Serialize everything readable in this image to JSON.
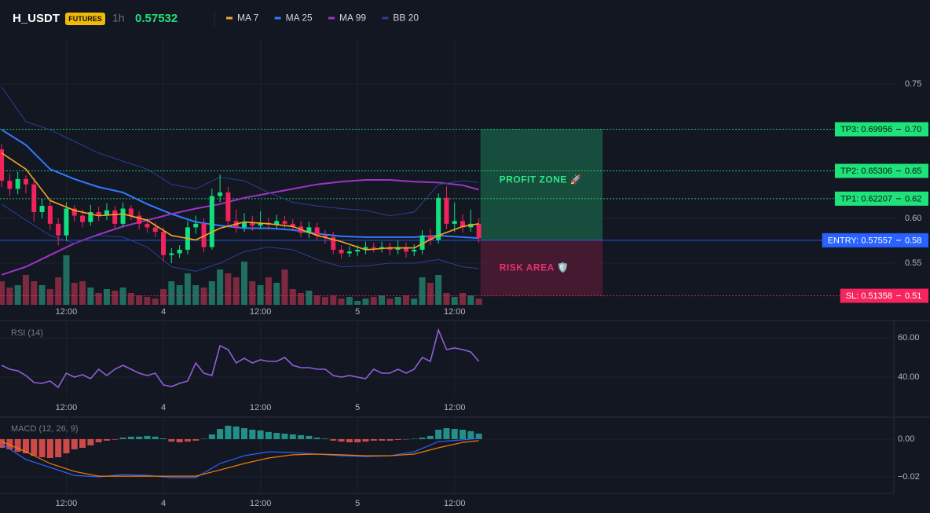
{
  "header": {
    "symbol": "H_USDT",
    "badge": "FUTURES",
    "interval": "1h",
    "price": 0.57532
  },
  "chart_data": [
    {
      "type": "candlestick",
      "xlim": [
        -0.2,
        110.5
      ],
      "xticks": [
        {
          "value": 8,
          "label": "12:00"
        },
        {
          "value": 20,
          "label": "4"
        },
        {
          "value": 32,
          "label": "12:00"
        },
        {
          "value": 44,
          "label": "5"
        },
        {
          "value": 56,
          "label": "12:00"
        }
      ],
      "ylim": [
        0.5035,
        0.8018
      ],
      "yticks": [
        0.75,
        {
          "value": 0.6,
          "label": "0.60"
        },
        0.55
      ],
      "up_color": "#12e07f",
      "down_color": "#f0245c",
      "x": [
        0,
        1,
        2,
        3,
        4,
        5,
        6,
        7,
        8,
        9,
        10,
        11,
        12,
        13,
        14,
        15,
        16,
        17,
        18,
        19,
        20,
        21,
        22,
        23,
        24,
        25,
        26,
        27,
        28,
        29,
        30,
        31,
        32,
        33,
        34,
        35,
        36,
        37,
        38,
        39,
        40,
        41,
        42,
        43,
        44,
        45,
        46,
        47,
        48,
        49,
        50,
        51,
        52,
        53,
        54,
        55,
        56,
        57,
        58,
        59
      ],
      "open": [
        0.677,
        0.642,
        0.633,
        0.644,
        0.638,
        0.607,
        0.614,
        0.594,
        0.581,
        0.611,
        0.603,
        0.596,
        0.607,
        0.603,
        0.609,
        0.594,
        0.611,
        0.603,
        0.594,
        0.59,
        0.585,
        0.559,
        0.561,
        0.565,
        0.59,
        0.594,
        0.568,
        0.625,
        0.629,
        0.597,
        0.59,
        0.596,
        0.592,
        0.595,
        0.593,
        0.597,
        0.594,
        0.591,
        0.584,
        0.59,
        0.581,
        0.579,
        0.565,
        0.561,
        0.563,
        0.565,
        0.568,
        0.567,
        0.568,
        0.565,
        0.568,
        0.563,
        0.565,
        0.581,
        0.576,
        0.623,
        0.594,
        0.597,
        0.59,
        0.594
      ],
      "high": [
        0.683,
        0.65,
        0.652,
        0.648,
        0.645,
        0.622,
        0.62,
        0.6,
        0.618,
        0.615,
        0.61,
        0.615,
        0.613,
        0.617,
        0.614,
        0.618,
        0.615,
        0.608,
        0.6,
        0.596,
        0.59,
        0.567,
        0.57,
        0.597,
        0.603,
        0.6,
        0.633,
        0.649,
        0.635,
        0.61,
        0.606,
        0.603,
        0.608,
        0.601,
        0.604,
        0.603,
        0.599,
        0.597,
        0.596,
        0.595,
        0.587,
        0.585,
        0.57,
        0.569,
        0.57,
        0.574,
        0.573,
        0.574,
        0.573,
        0.575,
        0.573,
        0.571,
        0.587,
        0.588,
        0.628,
        0.636,
        0.618,
        0.605,
        0.61,
        0.6
      ],
      "low": [
        0.635,
        0.625,
        0.627,
        0.628,
        0.596,
        0.6,
        0.587,
        0.57,
        0.575,
        0.596,
        0.59,
        0.592,
        0.597,
        0.598,
        0.588,
        0.59,
        0.598,
        0.588,
        0.584,
        0.579,
        0.552,
        0.55,
        0.556,
        0.56,
        0.583,
        0.562,
        0.565,
        0.618,
        0.592,
        0.584,
        0.585,
        0.586,
        0.588,
        0.587,
        0.588,
        0.589,
        0.586,
        0.579,
        0.578,
        0.575,
        0.572,
        0.56,
        0.555,
        0.557,
        0.558,
        0.56,
        0.562,
        0.562,
        0.559,
        0.56,
        0.556,
        0.558,
        0.56,
        0.57,
        0.572,
        0.588,
        0.585,
        0.584,
        0.585,
        0.573
      ],
      "close": [
        0.642,
        0.633,
        0.644,
        0.638,
        0.607,
        0.614,
        0.594,
        0.581,
        0.611,
        0.603,
        0.596,
        0.607,
        0.603,
        0.609,
        0.594,
        0.611,
        0.603,
        0.594,
        0.59,
        0.585,
        0.559,
        0.561,
        0.565,
        0.59,
        0.594,
        0.568,
        0.625,
        0.629,
        0.597,
        0.59,
        0.596,
        0.592,
        0.595,
        0.593,
        0.597,
        0.594,
        0.591,
        0.584,
        0.59,
        0.581,
        0.579,
        0.565,
        0.561,
        0.563,
        0.565,
        0.568,
        0.567,
        0.568,
        0.565,
        0.568,
        0.563,
        0.565,
        0.581,
        0.576,
        0.623,
        0.594,
        0.597,
        0.59,
        0.594,
        0.578
      ],
      "volume": {
        "ylim": [
          0,
          340
        ],
        "up_color": "#1f6e5f",
        "down_color": "#7d2a40",
        "values": [
          30,
          22,
          25,
          38,
          30,
          25,
          20,
          35,
          63,
          28,
          30,
          22,
          15,
          20,
          18,
          22,
          15,
          12,
          10,
          8,
          20,
          30,
          25,
          40,
          25,
          22,
          30,
          45,
          40,
          35,
          55,
          30,
          25,
          35,
          28,
          45,
          20,
          15,
          18,
          12,
          10,
          12,
          8,
          10,
          5,
          8,
          10,
          12,
          8,
          10,
          12,
          8,
          35,
          28,
          38,
          15,
          10,
          15,
          12,
          8
        ]
      },
      "series": [
        {
          "name": "MA 7",
          "color": "#f5a623",
          "width": 1.6,
          "x": [
            0,
            3,
            6,
            9,
            12,
            15,
            18,
            21,
            24,
            27,
            30,
            33,
            36,
            39,
            42,
            45,
            48,
            51,
            54,
            57,
            59
          ],
          "values": [
            0.673,
            0.655,
            0.62,
            0.609,
            0.603,
            0.605,
            0.598,
            0.581,
            0.576,
            0.589,
            0.596,
            0.594,
            0.591,
            0.581,
            0.574,
            0.565,
            0.567,
            0.567,
            0.581,
            0.591,
            0.594
          ]
        },
        {
          "name": "MA 25",
          "color": "#2f7bff",
          "width": 2,
          "x": [
            0,
            3,
            6,
            9,
            12,
            15,
            18,
            21,
            24,
            27,
            30,
            33,
            36,
            39,
            42,
            45,
            48,
            51,
            54,
            57,
            59
          ],
          "values": [
            0.699,
            0.682,
            0.655,
            0.644,
            0.635,
            0.629,
            0.616,
            0.605,
            0.596,
            0.592,
            0.589,
            0.589,
            0.587,
            0.583,
            0.58,
            0.579,
            0.579,
            0.579,
            0.581,
            0.579,
            0.578
          ]
        },
        {
          "name": "MA 99",
          "color": "#a033c9",
          "width": 2,
          "x": [
            0,
            3,
            6,
            9,
            12,
            15,
            18,
            21,
            24,
            27,
            30,
            33,
            36,
            39,
            42,
            45,
            48,
            51,
            54,
            57,
            59
          ],
          "values": [
            0.537,
            0.546,
            0.559,
            0.572,
            0.582,
            0.591,
            0.598,
            0.605,
            0.611,
            0.616,
            0.623,
            0.628,
            0.633,
            0.638,
            0.641,
            0.643,
            0.643,
            0.641,
            0.64,
            0.637,
            0.632
          ]
        },
        {
          "name": "BB 20",
          "color": "#2a3f95",
          "width": 1,
          "x": [
            0,
            3,
            6,
            9,
            12,
            15,
            18,
            21,
            24,
            27,
            30,
            33,
            36,
            39,
            42,
            45,
            48,
            51,
            54,
            57,
            59
          ],
          "values": [
            0.747,
            0.708,
            0.699,
            0.686,
            0.673,
            0.664,
            0.655,
            0.638,
            0.633,
            0.646,
            0.642,
            0.629,
            0.618,
            0.614,
            0.611,
            0.609,
            0.603,
            0.607,
            0.638,
            0.642,
            0.64
          ],
          "lower": [
            0.616,
            0.598,
            0.581,
            0.572,
            0.581,
            0.579,
            0.568,
            0.546,
            0.541,
            0.55,
            0.563,
            0.568,
            0.565,
            0.554,
            0.546,
            0.547,
            0.55,
            0.55,
            0.554,
            0.546,
            0.544
          ]
        }
      ],
      "levels": [
        {
          "label": "TP3: 0.69956",
          "value": 0.69956,
          "axis_label": "0.70",
          "color": "#1ee27a",
          "text_color": "#0b1a12",
          "dotted": true
        },
        {
          "label": "TP2: 0.65306",
          "value": 0.65306,
          "axis_label": "0.65",
          "color": "#1ee27a",
          "text_color": "#0b1a12",
          "dotted": true
        },
        {
          "label": "TP1: 0.62207",
          "value": 0.62207,
          "axis_label": "0.62",
          "color": "#1ee27a",
          "text_color": "#0b1a12",
          "dotted": true
        },
        {
          "label": "ENTRY: 0.57557",
          "value": 0.57557,
          "axis_label": "0.58",
          "color": "#2962ff",
          "text_color": "#ffffff",
          "dotted": false
        },
        {
          "label": "SL: 0.51358",
          "value": 0.51358,
          "axis_label": "0.51",
          "color": "#f7245d",
          "text_color": "#ffffff",
          "dotted": true
        }
      ],
      "zones": [
        {
          "label": "PROFIT ZONE 🚀",
          "range": [
            0.57557,
            0.69956
          ],
          "x": [
            59.2,
            74.3
          ],
          "color": "#1a7a52",
          "text_color": "#2ee58a"
        },
        {
          "label": "RISK AREA 🛡️",
          "range": [
            0.51358,
            0.57557
          ],
          "x": [
            59.2,
            74.3
          ],
          "color": "#6e1e3e",
          "text_color": "#e8306d"
        }
      ]
    },
    {
      "type": "line",
      "title": "RSI (14)",
      "xlim": [
        -0.2,
        110.5
      ],
      "xticks": [
        {
          "value": 8,
          "label": "12:00"
        },
        {
          "value": 20,
          "label": "4"
        },
        {
          "value": 32,
          "label": "12:00"
        },
        {
          "value": 44,
          "label": "5"
        },
        {
          "value": 56,
          "label": "12:00"
        }
      ],
      "ylim": [
        30,
        68
      ],
      "yticks": [
        {
          "value": 60,
          "label": "60.00"
        },
        {
          "value": 40,
          "label": "40.00"
        }
      ],
      "color": "#8e5fd8",
      "x": [
        0,
        1,
        2,
        3,
        4,
        5,
        6,
        7,
        8,
        9,
        10,
        11,
        12,
        13,
        14,
        15,
        16,
        17,
        18,
        19,
        20,
        21,
        22,
        23,
        24,
        25,
        26,
        27,
        28,
        29,
        30,
        31,
        32,
        33,
        34,
        35,
        36,
        37,
        38,
        39,
        40,
        41,
        42,
        43,
        44,
        45,
        46,
        47,
        48,
        49,
        50,
        51,
        52,
        53,
        54,
        55,
        56,
        57,
        58,
        59
      ],
      "values": [
        46,
        44,
        43.2,
        40.8,
        37.2,
        36.8,
        38,
        34.8,
        42,
        40,
        41.2,
        39.2,
        44,
        40.8,
        44,
        46,
        44,
        42,
        40.8,
        42,
        36,
        35.2,
        36.8,
        38,
        47.2,
        42,
        40.8,
        56,
        54,
        47.2,
        49.6,
        47.2,
        48.8,
        48,
        48,
        50,
        46,
        44.8,
        44.8,
        44,
        44,
        40.8,
        40,
        40.8,
        40,
        39.2,
        44,
        42,
        42,
        44,
        42,
        44,
        50,
        48,
        64,
        54,
        54.8,
        54,
        52.8,
        48
      ]
    },
    {
      "type": "macd",
      "title": "MACD (12, 26, 9)",
      "xlim": [
        -0.2,
        110.5
      ],
      "xticks": [
        {
          "value": 8,
          "label": "12:00"
        },
        {
          "value": 20,
          "label": "4"
        },
        {
          "value": 32,
          "label": "12:00"
        },
        {
          "value": 44,
          "label": "5"
        },
        {
          "value": 56,
          "label": "12:00"
        }
      ],
      "ylim": [
        -0.0283,
        0.0108
      ],
      "yticks": [
        {
          "value": 0,
          "label": "0.00"
        },
        {
          "value": -0.02,
          "label": "−0.02"
        }
      ],
      "histogram": {
        "up_color": "#26a69a",
        "down_color": "#ef5350",
        "x": [
          0,
          1,
          2,
          3,
          4,
          5,
          6,
          7,
          8,
          9,
          10,
          11,
          12,
          13,
          14,
          15,
          16,
          17,
          18,
          19,
          20,
          21,
          22,
          23,
          24,
          25,
          26,
          27,
          28,
          29,
          30,
          31,
          32,
          33,
          34,
          35,
          36,
          37,
          38,
          39,
          40,
          41,
          42,
          43,
          44,
          45,
          46,
          47,
          48,
          49,
          50,
          51,
          52,
          53,
          54,
          55,
          56,
          57,
          58,
          59
        ],
        "values": [
          -0.0046,
          -0.0054,
          -0.0067,
          -0.0075,
          -0.0088,
          -0.0096,
          -0.01,
          -0.0096,
          -0.0075,
          -0.0054,
          -0.0046,
          -0.0033,
          -0.0017,
          -0.0008,
          -0.0003,
          0.0008,
          0.0013,
          0.0013,
          0.0017,
          0.0013,
          0.0004,
          -0.0013,
          -0.0017,
          -0.0013,
          -0.0008,
          0.0002,
          0.0025,
          0.0054,
          0.0071,
          0.0067,
          0.0058,
          0.005,
          0.0046,
          0.0038,
          0.0033,
          0.0029,
          0.0025,
          0.0021,
          0.0017,
          0.0008,
          0.0003,
          -0.0008,
          -0.0013,
          -0.0017,
          -0.0017,
          -0.0013,
          -0.0008,
          -0.0008,
          -0.0008,
          -0.0004,
          -0.0002,
          0.0002,
          0.0008,
          0.0017,
          0.005,
          0.0058,
          0.0054,
          0.005,
          0.0042,
          0.0029
        ]
      },
      "lines": [
        {
          "color": "#2962ff",
          "x": [
            0,
            3,
            6,
            9,
            12,
            15,
            18,
            21,
            24,
            27,
            30,
            33,
            36,
            39,
            42,
            45,
            48,
            51,
            54,
            57,
            59
          ],
          "values": [
            -0.0025,
            -0.0108,
            -0.015,
            -0.0192,
            -0.02,
            -0.0188,
            -0.0192,
            -0.0204,
            -0.0204,
            -0.0129,
            -0.0088,
            -0.0067,
            -0.0071,
            -0.0079,
            -0.0088,
            -0.0092,
            -0.0088,
            -0.0067,
            -0.0013,
            -0.0004,
            0.0004
          ]
        },
        {
          "color": "#f57c00",
          "x": [
            0,
            3,
            6,
            9,
            12,
            15,
            18,
            21,
            24,
            27,
            30,
            33,
            36,
            39,
            42,
            45,
            48,
            51,
            54,
            57,
            59
          ],
          "values": [
            -0.0013,
            -0.0067,
            -0.0129,
            -0.0171,
            -0.0196,
            -0.0196,
            -0.0196,
            -0.0196,
            -0.0196,
            -0.0163,
            -0.0129,
            -0.01,
            -0.0083,
            -0.0079,
            -0.0083,
            -0.0088,
            -0.0088,
            -0.0079,
            -0.0046,
            -0.0017,
            -0.0008
          ]
        }
      ]
    }
  ]
}
